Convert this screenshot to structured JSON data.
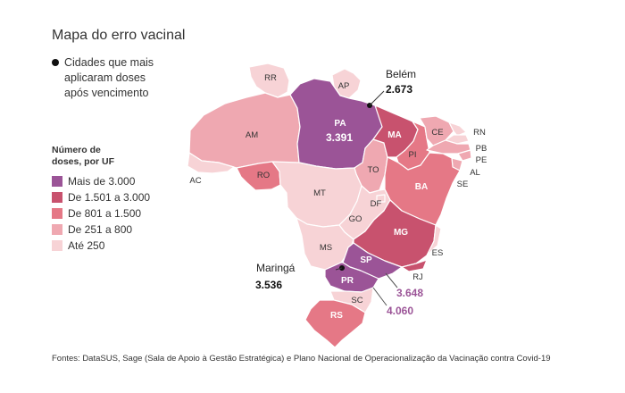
{
  "title": "Mapa do erro vacinal",
  "cities_legend": [
    "Cidades que mais",
    "aplicaram doses",
    "após vencimento"
  ],
  "legend": {
    "title_lines": [
      "Número de",
      "doses, por UF"
    ],
    "items": [
      {
        "label": "Mais de 3.000",
        "color": "#9b5497"
      },
      {
        "label": "De 1.501 a 3.000",
        "color": "#c8526e"
      },
      {
        "label": "De 801 a 1.500",
        "color": "#e57886"
      },
      {
        "label": "De 251 a 800",
        "color": "#efa8b1"
      },
      {
        "label": "Até 250",
        "color": "#f7d3d6"
      }
    ]
  },
  "states": {
    "RR": "RR",
    "AP": "AP",
    "AM": "AM",
    "PA": "PA",
    "AC": "AC",
    "RO": "RO",
    "MT": "MT",
    "MA": "MA",
    "PI": "PI",
    "CE": "CE",
    "RN": "RN",
    "PB": "PB",
    "PE": "PE",
    "AL": "AL",
    "SE": "SE",
    "BA": "BA",
    "TO": "TO",
    "GO": "GO",
    "DF": "DF",
    "MG": "MG",
    "ES": "ES",
    "MS": "MS",
    "SP": "SP",
    "RJ": "RJ",
    "PR": "PR",
    "SC": "SC",
    "RS": "RS"
  },
  "state_values": {
    "PA": "3.391",
    "SP": "3.648",
    "PR": "4.060"
  },
  "cities": [
    {
      "name": "Belém",
      "value": "2.673"
    },
    {
      "name": "Maringá",
      "value": "3.536"
    }
  ],
  "sources": "Fontes: DataSUS, Sage (Sala de Apoio à Gestão Estratégica) e Plano Nacional de Operacionalização da Vacinação contra Covid-19"
}
